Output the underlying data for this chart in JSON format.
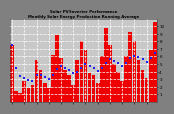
{
  "title": "Monthly Solar Energy Production Running Average",
  "title2": "Solar PV/Inverter Performance",
  "bar_color": "#ee0000",
  "avg_color": "#2222ee",
  "background_color": "#808080",
  "plot_bg_color": "#c8c8c8",
  "grid_color": "#ffffff",
  "bar_values": [
    7.5,
    1.5,
    1.2,
    2.8,
    1.8,
    2.2,
    5.5,
    4.2,
    2.5,
    1.8,
    6.2,
    8.8,
    5.8,
    4.2,
    3.5,
    2.2,
    5.5,
    8.0,
    6.8,
    3.8,
    3.5,
    2.5,
    6.0,
    9.8,
    7.5,
    5.0,
    4.0,
    2.8,
    6.0,
    9.2,
    8.0,
    5.5,
    4.2,
    3.2,
    6.8,
    10.5
  ],
  "avg_values": [
    7.5,
    4.5,
    3.4,
    3.2,
    2.9,
    2.8,
    3.5,
    3.5,
    3.3,
    3.0,
    3.5,
    4.3,
    4.7,
    4.5,
    4.2,
    3.8,
    4.0,
    4.5,
    5.0,
    4.7,
    4.5,
    4.1,
    4.5,
    5.2,
    5.7,
    5.4,
    5.1,
    4.8,
    5.1,
    5.8,
    6.1,
    5.9,
    5.6,
    5.3,
    5.8,
    6.5
  ],
  "ylim": [
    0,
    11
  ],
  "ytick_vals": [
    1,
    2,
    3,
    4,
    5,
    6,
    7,
    8,
    9,
    10
  ],
  "n_bars": 36
}
